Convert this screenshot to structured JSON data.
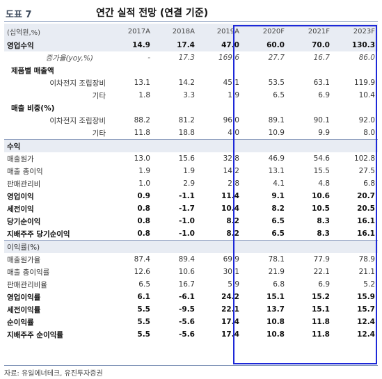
{
  "header": {
    "label": "도표 7",
    "title": "연간 실적 전망 (연결 기준)"
  },
  "columns": [
    "(십억원,%)",
    "2017A",
    "2018A",
    "2019A",
    "2020F",
    "2021F",
    "2023F"
  ],
  "rows": [
    {
      "label": "영업수익",
      "values": [
        "14.9",
        "17.4",
        "47.0",
        "60.0",
        "70.0",
        "130.3"
      ],
      "style": "bold shade"
    },
    {
      "label": "증가율(yoy,%)",
      "values": [
        "-",
        "17.3",
        "169.6",
        "27.7",
        "16.7",
        "86.0"
      ],
      "style": "italic",
      "indent": "center"
    },
    {
      "label": "제품별 매출액",
      "values": [
        "",
        "",
        "",
        "",
        "",
        ""
      ],
      "style": "bold-label"
    },
    {
      "label": "이차전지 조립장비",
      "values": [
        "13.1",
        "14.2",
        "45.1",
        "53.5",
        "63.1",
        "119.9"
      ],
      "indent": "sub"
    },
    {
      "label": "기타",
      "values": [
        "1.8",
        "3.3",
        "1.9",
        "6.5",
        "6.9",
        "10.4"
      ],
      "indent": "sub"
    },
    {
      "label": "매출 비중(%)",
      "values": [
        "",
        "",
        "",
        "",
        "",
        ""
      ],
      "style": "bold-label"
    },
    {
      "label": "이차전지 조립장비",
      "values": [
        "88.2",
        "81.2",
        "96.0",
        "89.1",
        "90.1",
        "92.0"
      ],
      "indent": "sub"
    },
    {
      "label": "기타",
      "values": [
        "11.8",
        "18.8",
        "4.0",
        "10.9",
        "9.9",
        "8.0"
      ],
      "indent": "sub"
    },
    {
      "label": "수익",
      "values": [
        "",
        "",
        "",
        "",
        "",
        ""
      ],
      "style": "bold shade sep"
    },
    {
      "label": "매출원가",
      "values": [
        "13.0",
        "15.6",
        "32.8",
        "46.9",
        "54.6",
        "102.8"
      ]
    },
    {
      "label": "매출 총이익",
      "values": [
        "1.9",
        "1.9",
        "14.2",
        "13.1",
        "15.5",
        "27.5"
      ]
    },
    {
      "label": "판매관리비",
      "values": [
        "1.0",
        "2.9",
        "2.8",
        "4.1",
        "4.8",
        "6.8"
      ]
    },
    {
      "label": "영업이익",
      "values": [
        "0.9",
        "-1.1",
        "11.4",
        "9.1",
        "10.6",
        "20.7"
      ],
      "style": "bold"
    },
    {
      "label": "세전이익",
      "values": [
        "0.8",
        "-1.7",
        "10.4",
        "8.2",
        "10.5",
        "20.5"
      ],
      "style": "bold"
    },
    {
      "label": "당기순이익",
      "values": [
        "0.8",
        "-1.0",
        "8.2",
        "6.5",
        "8.3",
        "16.1"
      ],
      "style": "bold"
    },
    {
      "label": "지배주주 당기순이익",
      "values": [
        "0.8",
        "-1.0",
        "8.2",
        "6.5",
        "8.3",
        "16.1"
      ],
      "style": "bold"
    },
    {
      "label": "이익률(%)",
      "values": [
        "",
        "",
        "",
        "",
        "",
        ""
      ],
      "style": "shade sep"
    },
    {
      "label": "매출원가율",
      "values": [
        "87.4",
        "89.4",
        "69.9",
        "78.1",
        "77.9",
        "78.9"
      ]
    },
    {
      "label": "매출 총이익률",
      "values": [
        "12.6",
        "10.6",
        "30.1",
        "21.9",
        "22.1",
        "21.1"
      ]
    },
    {
      "label": "판매관리비율",
      "values": [
        "6.5",
        "16.7",
        "5.9",
        "6.8",
        "6.9",
        "5.2"
      ]
    },
    {
      "label": "영업이익률",
      "values": [
        "6.1",
        "-6.1",
        "24.2",
        "15.1",
        "15.2",
        "15.9"
      ],
      "style": "bold"
    },
    {
      "label": "세전이익률",
      "values": [
        "5.5",
        "-9.5",
        "22.1",
        "13.7",
        "15.1",
        "15.7"
      ],
      "style": "bold"
    },
    {
      "label": "순이익률",
      "values": [
        "5.5",
        "-5.6",
        "17.4",
        "10.8",
        "11.8",
        "12.4"
      ],
      "style": "bold"
    },
    {
      "label": "지배주주 순이익률",
      "values": [
        "5.5",
        "-5.6",
        "17.4",
        "10.8",
        "11.8",
        "12.4"
      ],
      "style": "bold"
    }
  ],
  "source": "자료: 유일에너테크, 유진투자증권",
  "colors": {
    "highlight_border": "#1d28d8",
    "header_bg": "#e8ecf3"
  }
}
